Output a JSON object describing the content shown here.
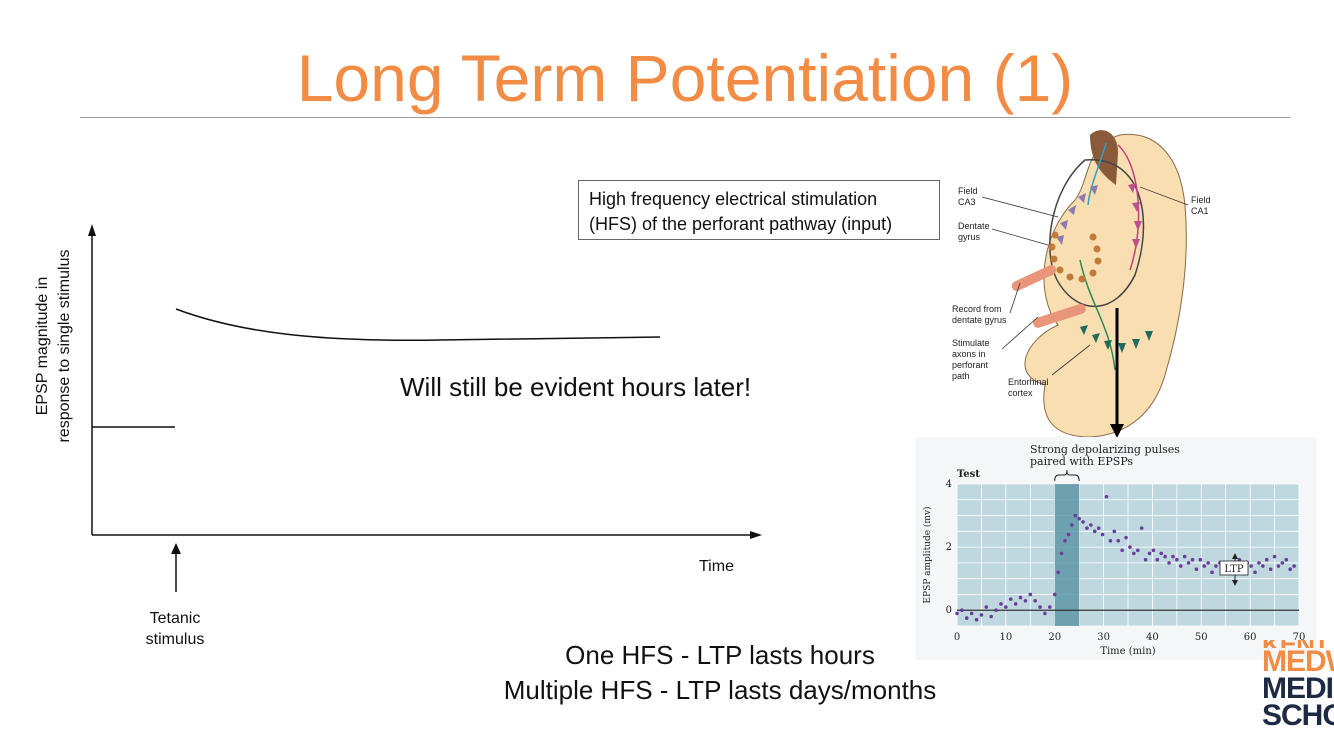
{
  "slide": {
    "title": "Long Term Potentiation (1)",
    "callout_line1": "High frequency electrical stimulation",
    "callout_line2": "(HFS) of the perforant pathway (input)",
    "ylabel_line1": "EPSP magnitude in",
    "ylabel_line2": "response  to single stimulus",
    "evident_text": "Will still be evident hours later!",
    "x_axis_label": "Time",
    "tetanic_line1": "Tetanic",
    "tetanic_line2": "stimulus",
    "summary_line1": "One HFS - LTP lasts hours",
    "summary_line2": "Multiple HFS - LTP lasts days/months"
  },
  "hippocampus_diagram": {
    "labels": {
      "field_ca3_a": "Field",
      "field_ca3_b": "CA3",
      "field_ca1_a": "Field",
      "field_ca1_b": "CA1",
      "dentate_a": "Dentate",
      "dentate_b": "gyrus",
      "record_a": "Record from",
      "record_b": "dentate gyrus",
      "stim_a": "Stimulate",
      "stim_b": "axons in",
      "stim_c": "perforant",
      "stim_d": "path",
      "ento_a": "Entorhinal",
      "ento_b": "cortex"
    }
  },
  "logo": {
    "line1": "KENT",
    "line2": "MEDW",
    "line3": "MEDIC",
    "line4": "SCHO"
  },
  "chart_data": [
    {
      "type": "line",
      "title": "",
      "xlabel": "Time",
      "ylabel": "EPSP magnitude in response  to single stimulus",
      "annotations": [
        "Tetanic stimulus",
        "Will still be evident hours later!"
      ],
      "note": "schematic, no numeric ticks"
    },
    {
      "type": "scatter",
      "title": "Test",
      "annotation_line1": "Strong depolarizing pulses",
      "annotation_line2": "paired with EPSPs",
      "ltp_label": "LTP",
      "xlabel": "Time (min)",
      "ylabel": "EPSP amplitude (mv)",
      "xlim": [
        0,
        70
      ],
      "ylim": [
        -0.5,
        4
      ],
      "x_ticks": [
        "0",
        "10",
        "20",
        "30",
        "40",
        "50",
        "60",
        "70"
      ],
      "y_ticks": [
        "0",
        "2",
        "4"
      ],
      "stim_window": [
        20,
        25
      ],
      "points": [
        [
          0,
          -0.1
        ],
        [
          1,
          0.0
        ],
        [
          2,
          -0.25
        ],
        [
          3,
          -0.1
        ],
        [
          4,
          -0.3
        ],
        [
          5,
          -0.15
        ],
        [
          6,
          0.1
        ],
        [
          7,
          -0.2
        ],
        [
          8,
          0.0
        ],
        [
          9,
          0.2
        ],
        [
          10,
          0.1
        ],
        [
          11,
          0.35
        ],
        [
          12,
          0.2
        ],
        [
          13,
          0.4
        ],
        [
          14,
          0.3
        ],
        [
          15,
          0.5
        ],
        [
          16,
          0.3
        ],
        [
          17,
          0.1
        ],
        [
          18,
          -0.1
        ],
        [
          19,
          0.1
        ],
        [
          20,
          0.5
        ],
        [
          20.7,
          1.2
        ],
        [
          21.4,
          1.8
        ],
        [
          22.1,
          2.2
        ],
        [
          22.8,
          2.4
        ],
        [
          23.5,
          2.7
        ],
        [
          24.2,
          3.0
        ],
        [
          25,
          2.9
        ],
        [
          25.8,
          2.8
        ],
        [
          26.6,
          2.6
        ],
        [
          27.4,
          2.7
        ],
        [
          28.2,
          2.5
        ],
        [
          29,
          2.6
        ],
        [
          29.8,
          2.4
        ],
        [
          30.6,
          3.6
        ],
        [
          31.4,
          2.2
        ],
        [
          32.2,
          2.5
        ],
        [
          33,
          2.2
        ],
        [
          33.8,
          1.9
        ],
        [
          34.6,
          2.3
        ],
        [
          35.4,
          2.0
        ],
        [
          36.2,
          1.8
        ],
        [
          37,
          1.9
        ],
        [
          37.8,
          2.6
        ],
        [
          38.6,
          1.6
        ],
        [
          39.4,
          1.8
        ],
        [
          40.2,
          1.9
        ],
        [
          41,
          1.6
        ],
        [
          41.8,
          1.8
        ],
        [
          42.6,
          1.7
        ],
        [
          43.4,
          1.5
        ],
        [
          44.2,
          1.7
        ],
        [
          45,
          1.6
        ],
        [
          45.8,
          1.4
        ],
        [
          46.6,
          1.7
        ],
        [
          47.4,
          1.5
        ],
        [
          48.2,
          1.6
        ],
        [
          49,
          1.3
        ],
        [
          49.8,
          1.6
        ],
        [
          50.6,
          1.4
        ],
        [
          51.4,
          1.5
        ],
        [
          52.2,
          1.2
        ],
        [
          53,
          1.4
        ],
        [
          53.8,
          1.5
        ],
        [
          54.6,
          1.3
        ],
        [
          55.4,
          1.5
        ],
        [
          56.2,
          1.2
        ],
        [
          57,
          1.4
        ],
        [
          57.8,
          1.6
        ],
        [
          58.6,
          1.3
        ],
        [
          59.4,
          1.5
        ],
        [
          60.2,
          1.4
        ],
        [
          61,
          1.2
        ],
        [
          61.8,
          1.5
        ],
        [
          62.6,
          1.4
        ],
        [
          63.4,
          1.6
        ],
        [
          64.2,
          1.3
        ],
        [
          65,
          1.7
        ],
        [
          65.8,
          1.4
        ],
        [
          66.6,
          1.5
        ],
        [
          67.4,
          1.6
        ],
        [
          68.2,
          1.3
        ],
        [
          69,
          1.4
        ]
      ]
    }
  ]
}
